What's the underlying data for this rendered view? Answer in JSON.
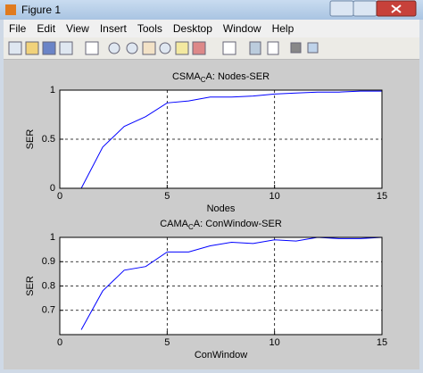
{
  "window": {
    "title": "Figure 1",
    "menu": [
      "File",
      "Edit",
      "View",
      "Insert",
      "Tools",
      "Desktop",
      "Window",
      "Help"
    ]
  },
  "chart_data": [
    {
      "type": "line",
      "title": [
        "CSMA",
        "C",
        "A: Nodes-SER"
      ],
      "xlabel": "Nodes",
      "ylabel": "SER",
      "x": [
        1,
        2,
        3,
        4,
        5,
        6,
        7,
        8,
        9,
        10,
        11,
        12,
        13,
        14,
        15
      ],
      "series": [
        {
          "color": "#0000ff",
          "values": [
            0,
            0.42,
            0.63,
            0.73,
            0.87,
            0.89,
            0.93,
            0.93,
            0.94,
            0.96,
            0.97,
            0.98,
            0.98,
            0.99,
            0.99
          ]
        }
      ],
      "xlim": [
        0,
        15
      ],
      "ylim": [
        0,
        1
      ],
      "xticks": [
        0,
        5,
        10,
        15
      ],
      "yticks": [
        0,
        0.5,
        1
      ],
      "grid": true
    },
    {
      "type": "line",
      "title": [
        "CAMA",
        "C",
        "A: ConWindow-SER"
      ],
      "xlabel": "ConWindow",
      "ylabel": "SER",
      "x": [
        1,
        2,
        3,
        4,
        5,
        6,
        7,
        8,
        9,
        10,
        11,
        12,
        13,
        14,
        15
      ],
      "series": [
        {
          "color": "#0000ff",
          "values": [
            0.62,
            0.78,
            0.865,
            0.88,
            0.94,
            0.94,
            0.965,
            0.98,
            0.975,
            0.99,
            0.985,
            1.0,
            0.995,
            0.995,
            1.0
          ]
        }
      ],
      "xlim": [
        0,
        15
      ],
      "ylim": [
        0.6,
        1
      ],
      "xticks": [
        0,
        5,
        10,
        15
      ],
      "yticks": [
        0.7,
        0.8,
        0.9,
        1
      ],
      "grid": true
    }
  ]
}
